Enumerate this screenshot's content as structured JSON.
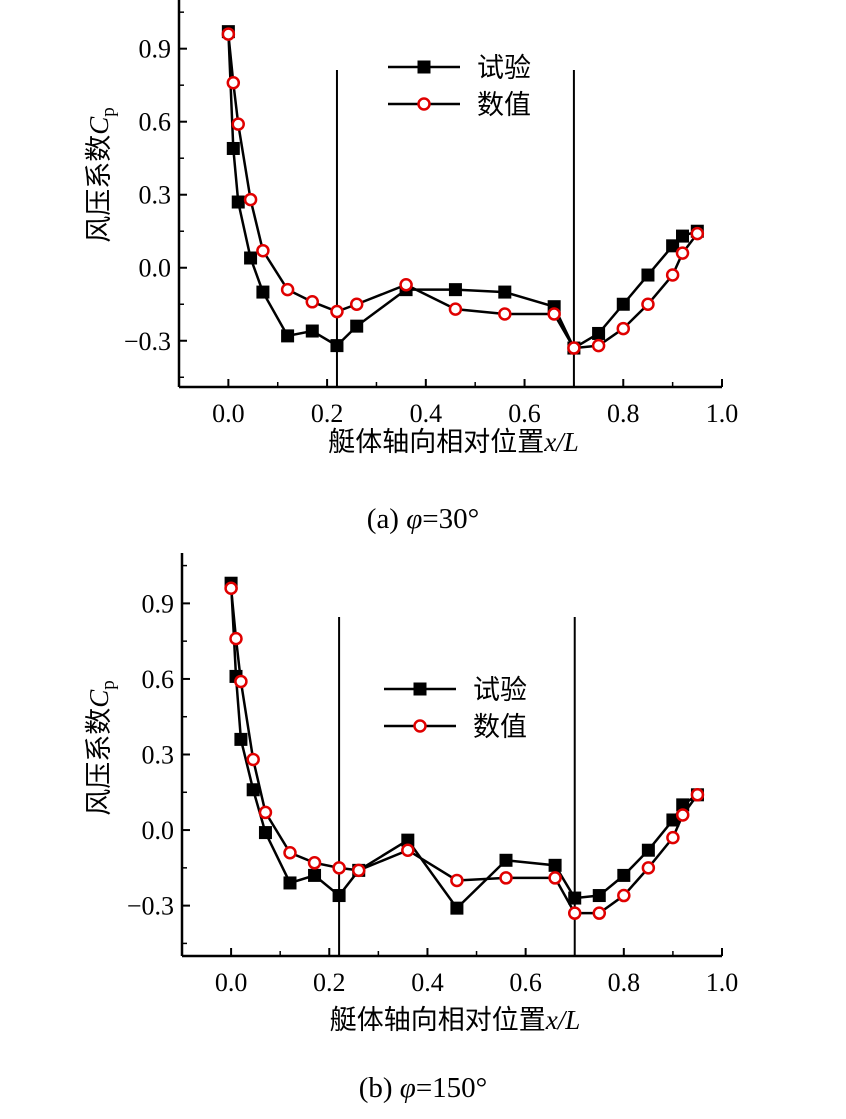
{
  "chart_data": [
    {
      "type": "line",
      "caption": {
        "prefix": "(a) ",
        "symbol": "φ",
        "suffix": "=30°"
      },
      "xlabel": {
        "text": "艇体轴向相对位置",
        "var": "x/L"
      },
      "ylabel": {
        "text": "风压系数",
        "var": "C",
        "sub": "p"
      },
      "xlim": [
        -0.1,
        1.0
      ],
      "ylim": [
        -0.5,
        1.1
      ],
      "xticks": [
        0.0,
        0.2,
        0.4,
        0.6,
        0.8,
        1.0
      ],
      "xtick_labels": [
        "0.0",
        "0.2",
        "0.4",
        "0.6",
        "0.8",
        "1.0"
      ],
      "yticks": [
        -0.3,
        0.0,
        0.3,
        0.6,
        0.9
      ],
      "ytick_labels": [
        "−0.3",
        "0.0",
        "0.3",
        "0.6",
        "0.9"
      ],
      "vlines": [
        0.22,
        0.7
      ],
      "legend_position": "top-center",
      "series": [
        {
          "name": "试验",
          "marker": "filled-square",
          "color": "#000000",
          "x": [
            0.0,
            0.01,
            0.02,
            0.045,
            0.07,
            0.12,
            0.17,
            0.22,
            0.26,
            0.36,
            0.46,
            0.56,
            0.66,
            0.7,
            0.75,
            0.8,
            0.85,
            0.9,
            0.92,
            0.95
          ],
          "y": [
            0.97,
            0.49,
            0.27,
            0.04,
            -0.1,
            -0.28,
            -0.26,
            -0.32,
            -0.24,
            -0.09,
            -0.09,
            -0.1,
            -0.16,
            -0.33,
            -0.27,
            -0.15,
            -0.03,
            0.09,
            0.13,
            0.15
          ]
        },
        {
          "name": "数值",
          "marker": "open-circle",
          "color": "#e00000",
          "x": [
            0.0,
            0.01,
            0.02,
            0.045,
            0.07,
            0.12,
            0.17,
            0.22,
            0.26,
            0.36,
            0.46,
            0.56,
            0.66,
            0.7,
            0.75,
            0.8,
            0.85,
            0.9,
            0.92,
            0.95
          ],
          "y": [
            0.96,
            0.76,
            0.59,
            0.28,
            0.07,
            -0.09,
            -0.14,
            -0.18,
            -0.15,
            -0.07,
            -0.17,
            -0.19,
            -0.19,
            -0.33,
            -0.32,
            -0.25,
            -0.15,
            -0.03,
            0.06,
            0.14
          ]
        }
      ]
    },
    {
      "type": "line",
      "caption": {
        "prefix": "(b) ",
        "symbol": "φ",
        "suffix": "=150°"
      },
      "xlabel": {
        "text": "艇体轴向相对位置",
        "var": "x/L"
      },
      "ylabel": {
        "text": "风压系数",
        "var": "C",
        "sub": "p"
      },
      "xlim": [
        -0.1,
        1.0
      ],
      "ylim": [
        -0.5,
        1.1
      ],
      "xticks": [
        0.0,
        0.2,
        0.4,
        0.6,
        0.8,
        1.0
      ],
      "xtick_labels": [
        "0.0",
        "0.2",
        "0.4",
        "0.6",
        "0.8",
        "1.0"
      ],
      "yticks": [
        -0.3,
        0.0,
        0.3,
        0.6,
        0.9
      ],
      "ytick_labels": [
        "−0.3",
        "0.0",
        "0.3",
        "0.6",
        "0.9"
      ],
      "vlines": [
        0.22,
        0.7
      ],
      "legend_position": "center",
      "series": [
        {
          "name": "试验",
          "marker": "filled-square",
          "color": "#000000",
          "x": [
            0.0,
            0.01,
            0.02,
            0.045,
            0.07,
            0.12,
            0.17,
            0.22,
            0.26,
            0.36,
            0.46,
            0.56,
            0.66,
            0.7,
            0.75,
            0.8,
            0.85,
            0.9,
            0.92,
            0.95
          ],
          "y": [
            0.98,
            0.61,
            0.36,
            0.16,
            -0.01,
            -0.21,
            -0.18,
            -0.26,
            -0.16,
            -0.04,
            -0.31,
            -0.12,
            -0.14,
            -0.27,
            -0.26,
            -0.18,
            -0.08,
            0.04,
            0.1,
            0.14
          ]
        },
        {
          "name": "数值",
          "marker": "open-circle",
          "color": "#e00000",
          "x": [
            0.0,
            0.01,
            0.02,
            0.045,
            0.07,
            0.12,
            0.17,
            0.22,
            0.26,
            0.36,
            0.46,
            0.56,
            0.66,
            0.7,
            0.75,
            0.8,
            0.85,
            0.9,
            0.92,
            0.95
          ],
          "y": [
            0.96,
            0.76,
            0.59,
            0.28,
            0.07,
            -0.09,
            -0.13,
            -0.15,
            -0.16,
            -0.08,
            -0.2,
            -0.19,
            -0.19,
            -0.33,
            -0.33,
            -0.26,
            -0.15,
            -0.03,
            0.06,
            0.14
          ]
        }
      ]
    }
  ]
}
